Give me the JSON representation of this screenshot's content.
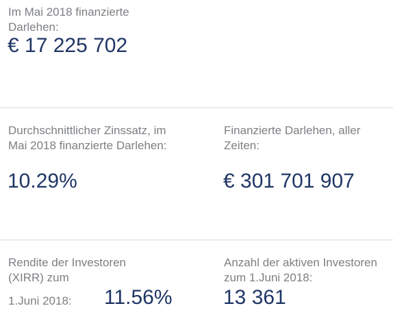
{
  "stats": {
    "monthly_loans": {
      "label": "Im Mai 2018 finanzierte Darlehen:",
      "value": "€ 17 225 702"
    },
    "avg_interest": {
      "label": "Durchschnittlicher Zinssatz, im Mai 2018 finanzierte Darlehen:",
      "value": "10.29%"
    },
    "total_loans": {
      "label": "Finanzierte Darlehen, aller Zeiten:",
      "value": "€ 301 701 907"
    },
    "investor_return": {
      "label_line1": "Rendite der Investoren (XIRR) zum",
      "label_line2": "1.Juni 2018:",
      "value": "11.56%"
    },
    "active_investors": {
      "label": "Anzahl der aktiven Investoren zum 1.Juni 2018:",
      "value": "13 361"
    }
  },
  "colors": {
    "label": "#7c7f83",
    "value": "#1f3565",
    "divider": "#d9dadc"
  }
}
